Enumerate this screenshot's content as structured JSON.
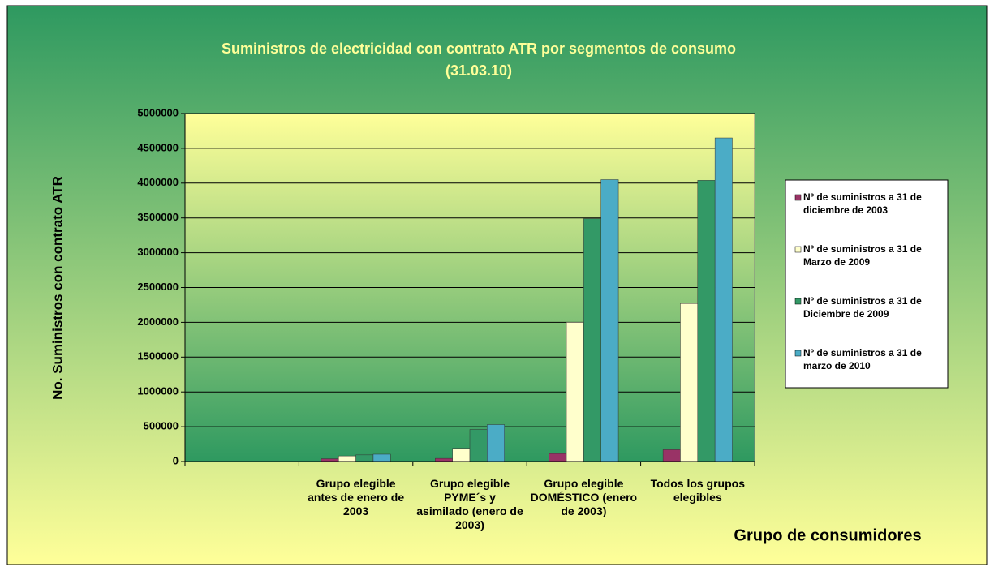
{
  "chart_data": {
    "type": "bar",
    "title": [
      "Suministros de electricidad con contrato ATR por segmentos de consumo",
      "(31.03.10)"
    ],
    "x_label": "Grupo de consumidores",
    "y_label": "No. Suministros con contrato ATR",
    "categories": [
      null,
      "Grupo elegible antes de enero de 2003",
      "Grupo elegible PYME´s y asimilado (enero de 2003)",
      "Grupo elegible DOMÉSTICO (enero de 2003)",
      "Todos los grupos elegibles"
    ],
    "series": [
      {
        "name": "Nº de suministros a 31 de diciembre de 2003",
        "color": "#993366",
        "values": [
          null,
          40000,
          45000,
          115000,
          170000
        ]
      },
      {
        "name": "Nº de suministros a 31 de Marzo de 2009",
        "color": "#ffffcc",
        "values": [
          null,
          80000,
          190000,
          2000000,
          2270000
        ]
      },
      {
        "name": "Nº de suministros a 31 de Diciembre de 2009",
        "color": "#339966",
        "values": [
          null,
          95000,
          460000,
          3490000,
          4040000
        ]
      },
      {
        "name": "Nº de suministros a 31 de marzo de 2010",
        "color": "#4bacc6",
        "values": [
          null,
          105000,
          530000,
          4050000,
          4650000
        ]
      }
    ],
    "ylim": [
      0,
      5000000
    ],
    "yticks": [
      0,
      500000,
      1000000,
      1500000,
      2000000,
      2500000,
      3000000,
      3500000,
      4000000,
      4500000,
      5000000
    ],
    "grid": true,
    "legend": "right"
  }
}
